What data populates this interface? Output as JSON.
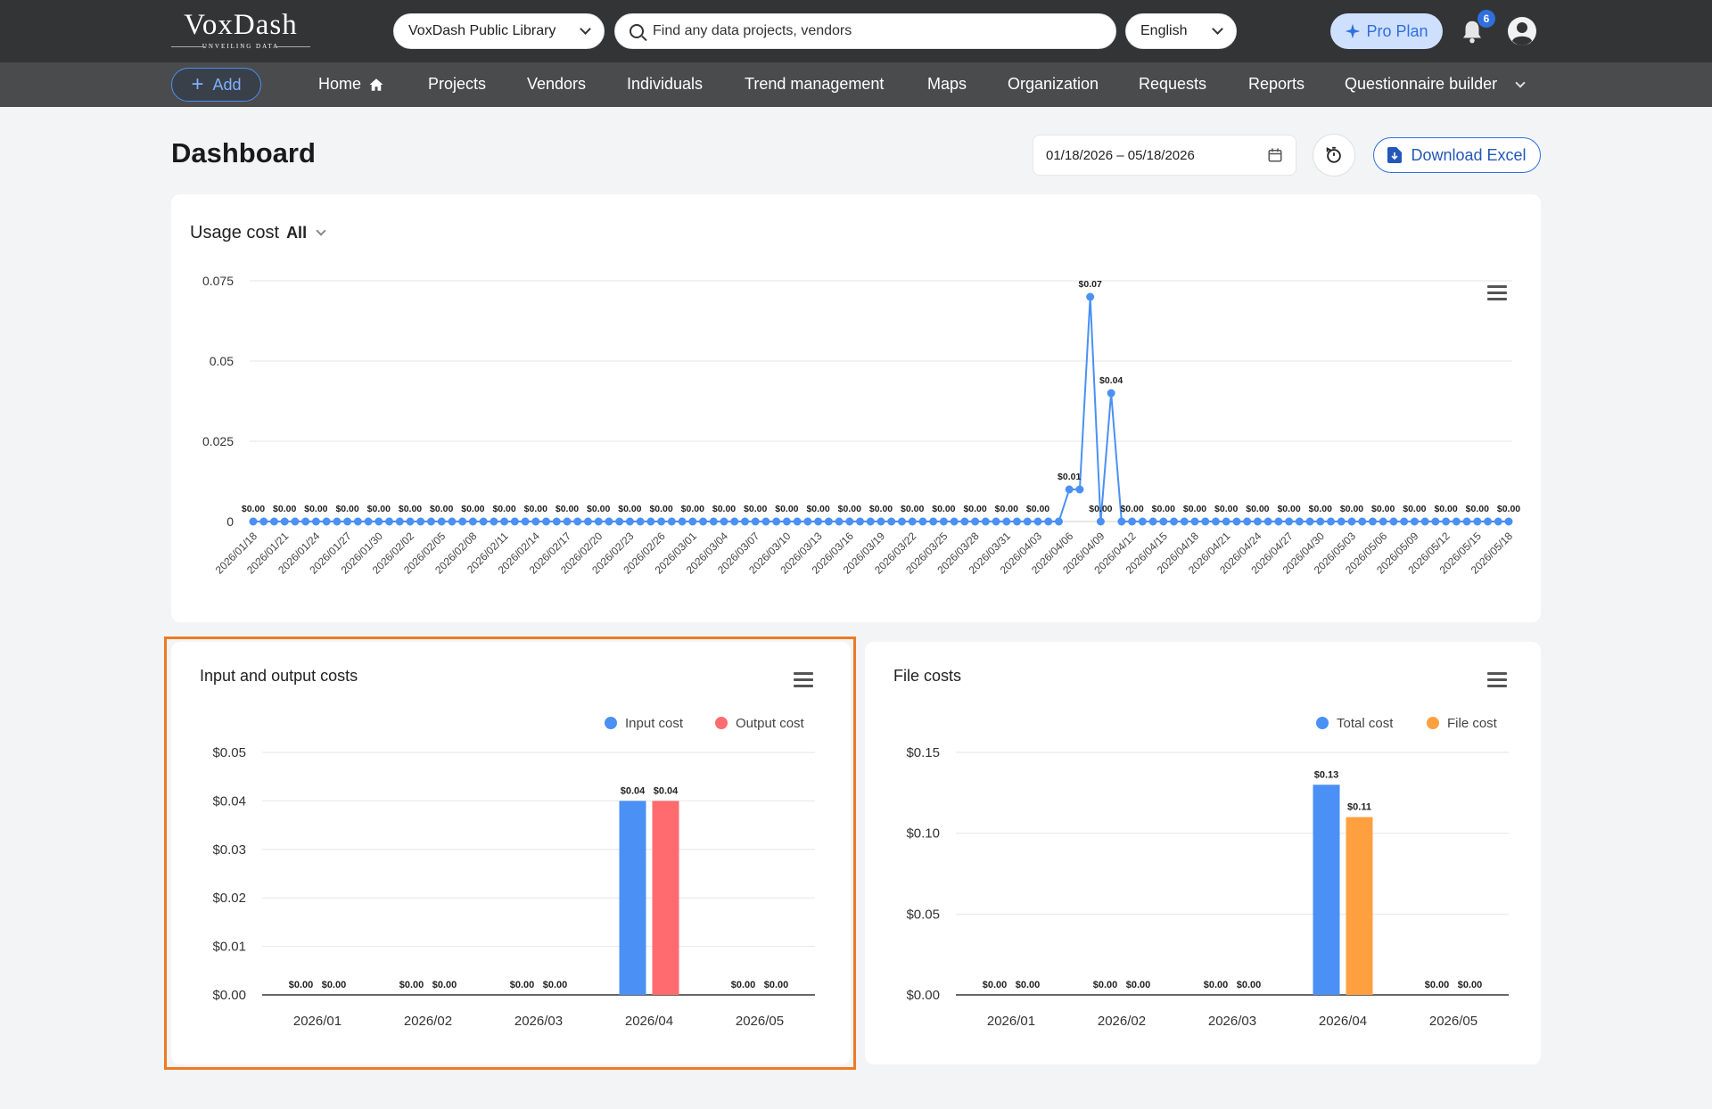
{
  "brand": {
    "name": "VoxDash",
    "tagline": "UNVEILING DATA"
  },
  "header": {
    "library_select": "VoxDash Public Library",
    "search_placeholder": "Find any data projects, vendors",
    "language": "English",
    "pro_label": "Pro Plan",
    "notification_count": "6"
  },
  "nav": {
    "add_label": "Add",
    "items": [
      "Home",
      "Projects",
      "Vendors",
      "Individuals",
      "Trend management",
      "Maps",
      "Organization",
      "Requests",
      "Reports",
      "Questionnaire builder"
    ]
  },
  "page": {
    "title": "Dashboard",
    "date_range": "01/18/2026 – 05/18/2026",
    "download_label": "Download Excel"
  },
  "colors": {
    "blue": "#4a90f5",
    "red": "#ff6b6e",
    "orange": "#ffa040",
    "highlight": "#ee7a24"
  },
  "icons": [
    "search-icon",
    "chevron-down-icon",
    "sparkle-icon",
    "bell-icon",
    "user-icon",
    "plus-icon",
    "home-icon",
    "calendar-icon",
    "reset-timer-icon",
    "file-download-icon",
    "menu-icon"
  ],
  "usage": {
    "title": "Usage cost",
    "filter": "All"
  },
  "chart_data": [
    {
      "type": "line",
      "title": "Usage cost",
      "y_ticks": [
        "0",
        "0.025",
        "0.05",
        "0.075"
      ],
      "ylim": [
        0,
        0.075
      ],
      "x_start": "2026/01/18",
      "x_tick_labels": [
        "2026/01/18",
        "2026/01/21",
        "2026/01/24",
        "2026/01/27",
        "2026/01/30",
        "2026/02/02",
        "2026/02/05",
        "2026/02/08",
        "2026/02/11",
        "2026/02/14",
        "2026/02/17",
        "2026/02/20",
        "2026/02/23",
        "2026/02/26",
        "2026/03/01",
        "2026/03/04",
        "2026/03/07",
        "2026/03/10",
        "2026/03/13",
        "2026/03/16",
        "2026/03/19",
        "2026/03/22",
        "2026/03/25",
        "2026/03/28",
        "2026/03/31",
        "2026/04/03",
        "2026/04/06",
        "2026/04/09",
        "2026/04/12",
        "2026/04/15",
        "2026/04/18",
        "2026/04/21",
        "2026/04/24",
        "2026/04/27",
        "2026/04/30",
        "2026/05/03",
        "2026/05/06",
        "2026/05/09",
        "2026/05/12",
        "2026/05/15",
        "2026/05/18"
      ],
      "values": [
        0,
        0,
        0,
        0,
        0,
        0,
        0,
        0,
        0,
        0,
        0,
        0,
        0,
        0,
        0,
        0,
        0,
        0,
        0,
        0,
        0,
        0,
        0,
        0,
        0,
        0,
        0,
        0,
        0,
        0,
        0,
        0,
        0,
        0,
        0,
        0,
        0,
        0,
        0,
        0,
        0,
        0,
        0,
        0,
        0,
        0,
        0,
        0,
        0,
        0,
        0,
        0,
        0,
        0,
        0,
        0,
        0,
        0,
        0,
        0,
        0,
        0,
        0,
        0,
        0,
        0,
        0,
        0,
        0,
        0,
        0,
        0,
        0,
        0,
        0,
        0,
        0,
        0,
        0.01,
        0.01,
        0.07,
        0,
        0.04,
        0,
        0,
        0,
        0,
        0,
        0,
        0,
        0,
        0,
        0,
        0,
        0,
        0,
        0,
        0,
        0,
        0,
        0,
        0,
        0,
        0,
        0,
        0,
        0,
        0,
        0,
        0,
        0,
        0,
        0,
        0,
        0,
        0,
        0,
        0,
        0,
        0,
        0
      ],
      "data_labels": [
        {
          "day": 0,
          "label": "$0.00"
        },
        {
          "day": 3,
          "label": "$0.00"
        },
        {
          "day": 6,
          "label": "$0.00"
        },
        {
          "day": 9,
          "label": "$0.00"
        },
        {
          "day": 12,
          "label": "$0.00"
        },
        {
          "day": 15,
          "label": "$0.00"
        },
        {
          "day": 18,
          "label": "$0.00"
        },
        {
          "day": 21,
          "label": "$0.00"
        },
        {
          "day": 24,
          "label": "$0.00"
        },
        {
          "day": 27,
          "label": "$0.00"
        },
        {
          "day": 30,
          "label": "$0.00"
        },
        {
          "day": 33,
          "label": "$0.00"
        },
        {
          "day": 36,
          "label": "$0.00"
        },
        {
          "day": 39,
          "label": "$0.00"
        },
        {
          "day": 42,
          "label": "$0.00"
        },
        {
          "day": 45,
          "label": "$0.00"
        },
        {
          "day": 48,
          "label": "$0.00"
        },
        {
          "day": 51,
          "label": "$0.00"
        },
        {
          "day": 54,
          "label": "$0.00"
        },
        {
          "day": 57,
          "label": "$0.00"
        },
        {
          "day": 60,
          "label": "$0.00"
        },
        {
          "day": 63,
          "label": "$0.00"
        },
        {
          "day": 66,
          "label": "$0.00"
        },
        {
          "day": 69,
          "label": "$0.00"
        },
        {
          "day": 72,
          "label": "$0.00"
        },
        {
          "day": 75,
          "label": "$0.00"
        },
        {
          "day": 78,
          "label": "$0.01"
        },
        {
          "day": 80,
          "label": "$0.07"
        },
        {
          "day": 81,
          "label": "$0.00"
        },
        {
          "day": 82,
          "label": "$0.04"
        },
        {
          "day": 84,
          "label": "$0.00"
        },
        {
          "day": 87,
          "label": "$0.00"
        },
        {
          "day": 90,
          "label": "$0.00"
        },
        {
          "day": 93,
          "label": "$0.00"
        },
        {
          "day": 96,
          "label": "$0.00"
        },
        {
          "day": 99,
          "label": "$0.00"
        },
        {
          "day": 102,
          "label": "$0.00"
        },
        {
          "day": 105,
          "label": "$0.00"
        },
        {
          "day": 108,
          "label": "$0.00"
        },
        {
          "day": 111,
          "label": "$0.00"
        },
        {
          "day": 114,
          "label": "$0.00"
        },
        {
          "day": 117,
          "label": "$0.00"
        },
        {
          "day": 120,
          "label": "$0.00"
        }
      ],
      "grid": true
    },
    {
      "type": "bar",
      "title": "Input and output costs",
      "categories": [
        "2026/01",
        "2026/02",
        "2026/03",
        "2026/04",
        "2026/05"
      ],
      "series": [
        {
          "name": "Input cost",
          "color": "#4a90f5",
          "values": [
            0,
            0,
            0,
            0.04,
            0
          ],
          "labels": [
            "$0.00",
            "$0.00",
            "$0.00",
            "$0.04",
            "$0.00"
          ]
        },
        {
          "name": "Output cost",
          "color": "#ff6b6e",
          "values": [
            0,
            0,
            0,
            0.04,
            0
          ],
          "labels": [
            "$0.00",
            "$0.00",
            "$0.00",
            "$0.04",
            "$0.00"
          ]
        }
      ],
      "y_ticks": [
        "$0.00",
        "$0.01",
        "$0.02",
        "$0.03",
        "$0.04",
        "$0.05"
      ],
      "ylim": [
        0,
        0.05
      ],
      "legend": "top-right",
      "grid": true
    },
    {
      "type": "bar",
      "title": "File costs",
      "categories": [
        "2026/01",
        "2026/02",
        "2026/03",
        "2026/04",
        "2026/05"
      ],
      "series": [
        {
          "name": "Total cost",
          "color": "#4a90f5",
          "values": [
            0,
            0,
            0,
            0.13,
            0
          ],
          "labels": [
            "$0.00",
            "$0.00",
            "$0.00",
            "$0.13",
            "$0.00"
          ]
        },
        {
          "name": "File cost",
          "color": "#ffa040",
          "values": [
            0,
            0,
            0,
            0.11,
            0
          ],
          "labels": [
            "$0.00",
            "$0.00",
            "$0.00",
            "$0.11",
            "$0.00"
          ]
        }
      ],
      "y_ticks": [
        "$0.00",
        "$0.05",
        "$0.10",
        "$0.15"
      ],
      "ylim": [
        0,
        0.15
      ],
      "legend": "top-right",
      "grid": true
    }
  ]
}
